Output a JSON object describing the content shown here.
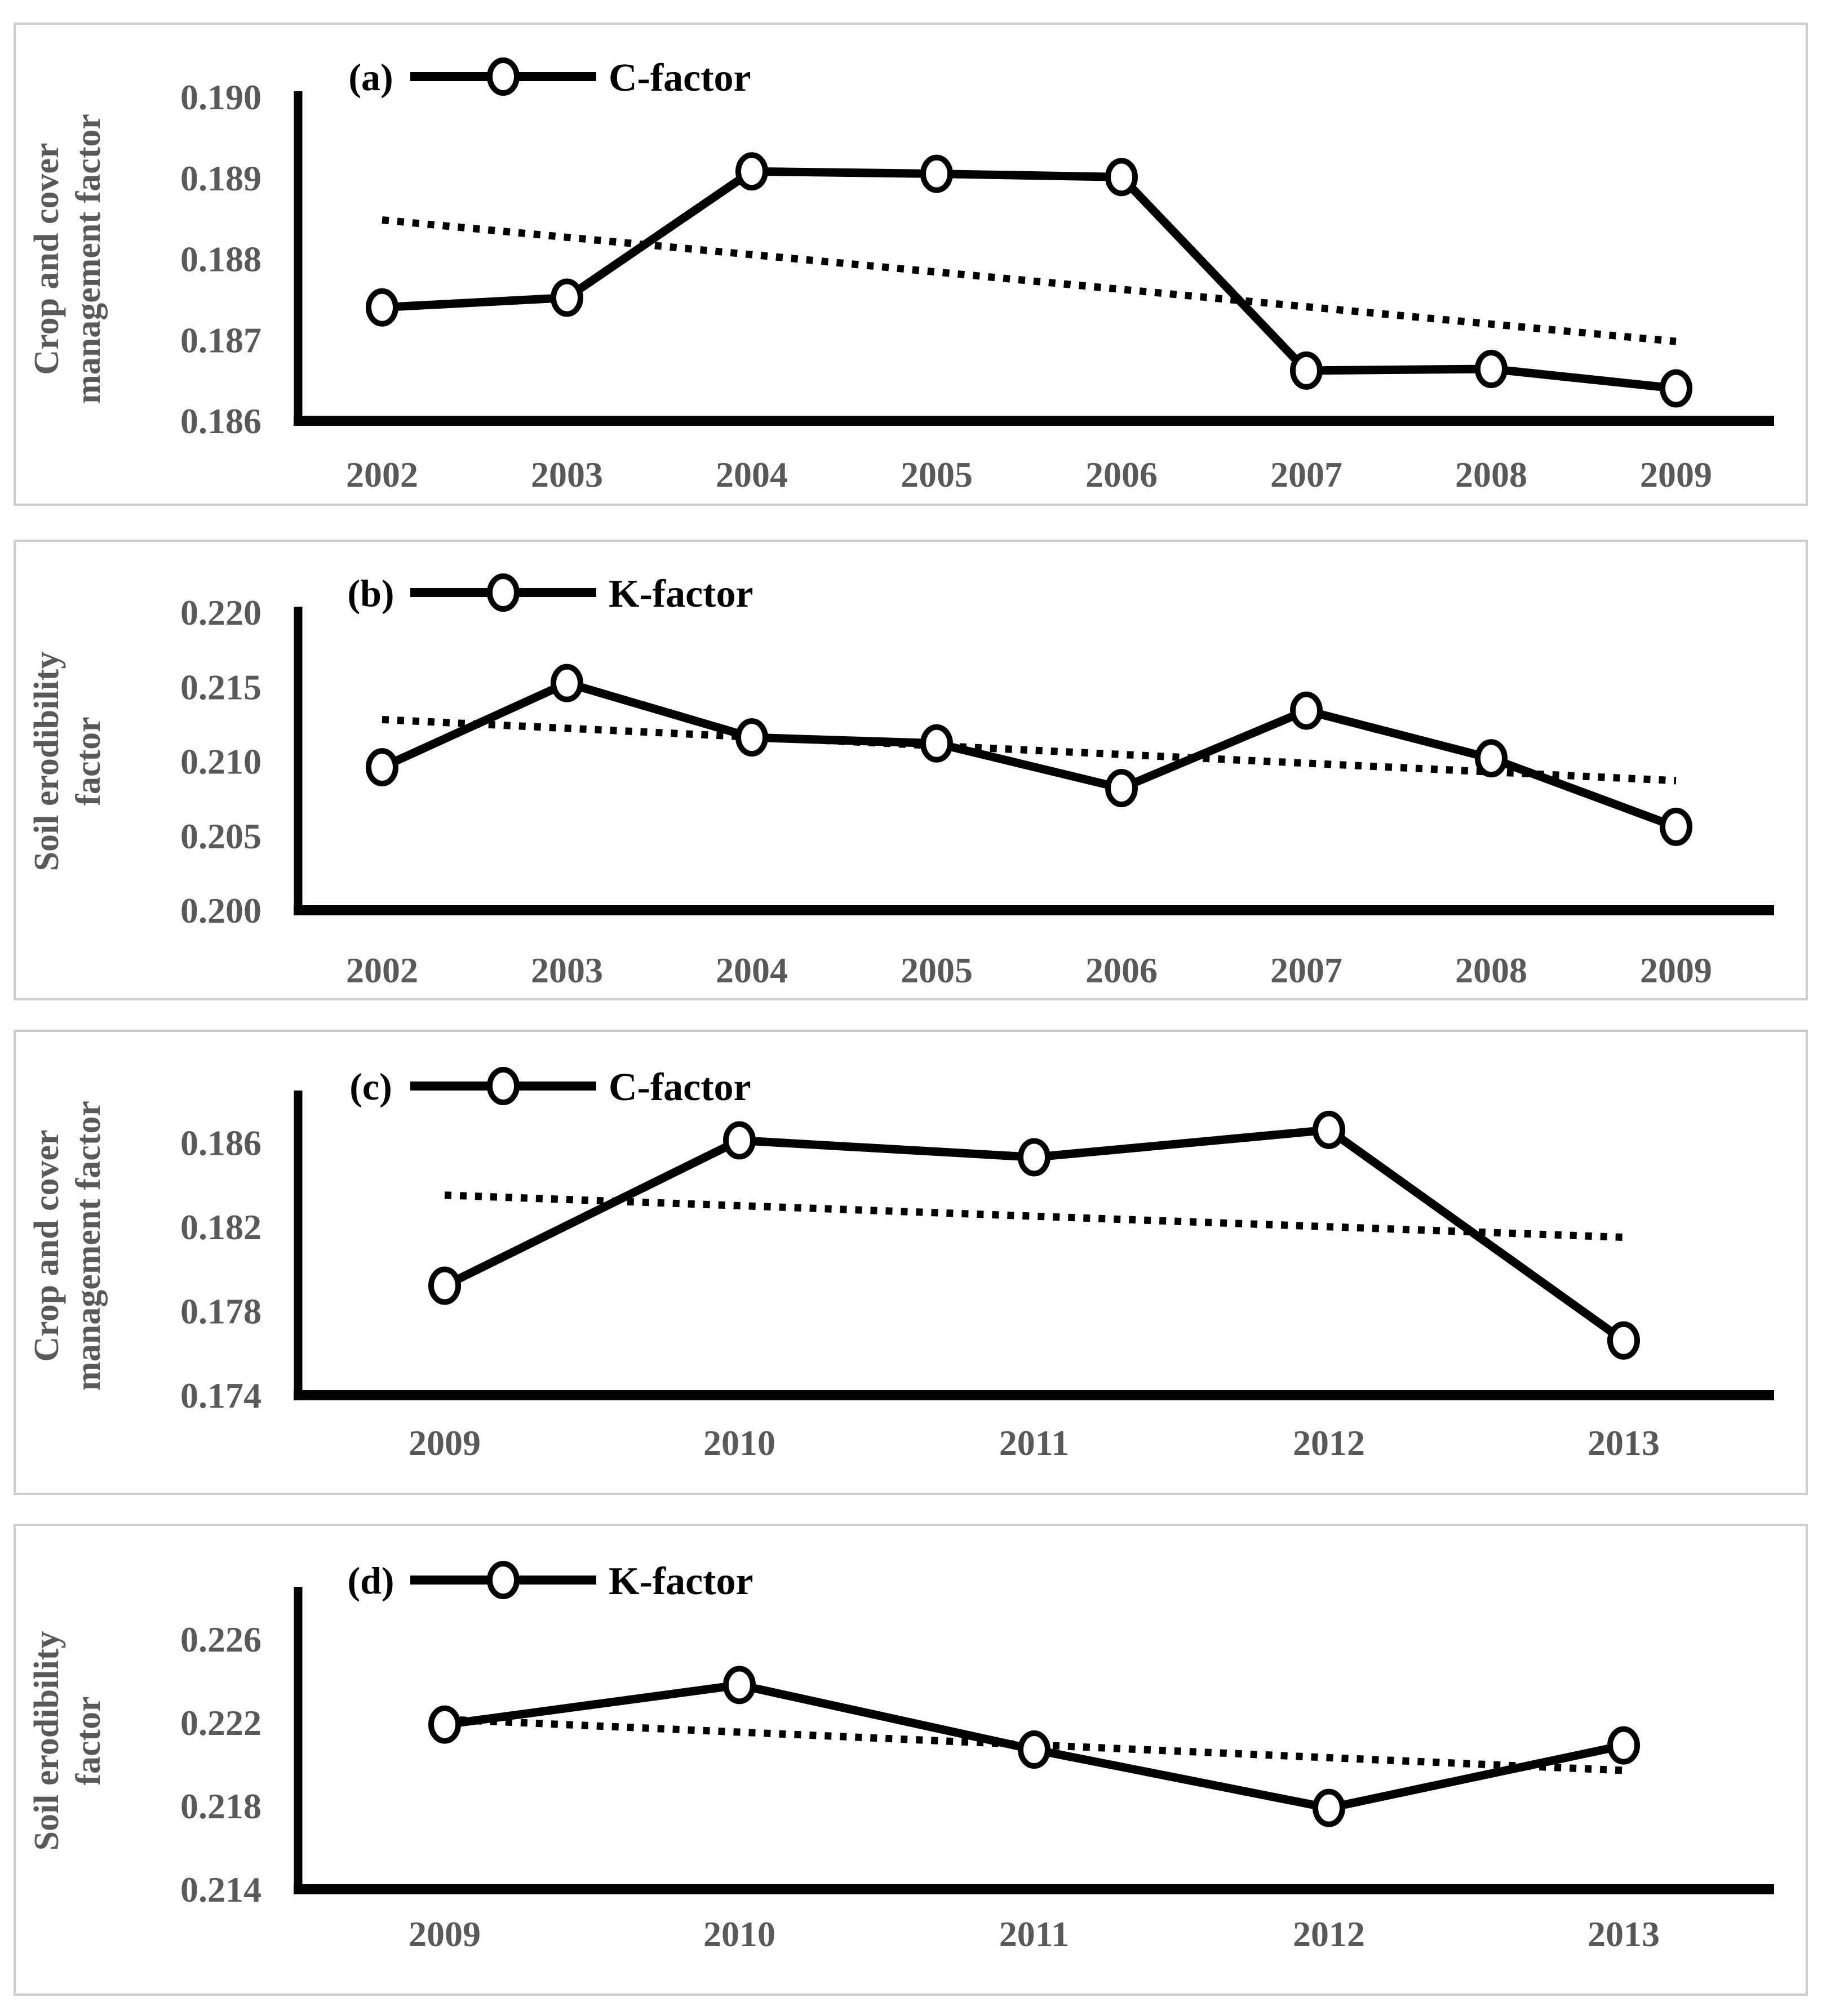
{
  "page": {
    "background": "#ffffff",
    "panel_border_color": "#cdcdcd",
    "axis_color": "#000000",
    "series_color": "#000000",
    "tick_label_color": "#595959",
    "marker_fill": "#ffffff"
  },
  "chart_data": [
    {
      "id": "a",
      "type": "line",
      "panel_label": "(a)",
      "legend": [
        "C-factor"
      ],
      "legend_position": "top-left-inside",
      "ylabel": "Crop and cover management factor",
      "ylabel_lines": [
        "Crop and cover",
        "management factor"
      ],
      "xlabel": "",
      "categories": [
        "2002",
        "2003",
        "2004",
        "2005",
        "2006",
        "2007",
        "2008",
        "2009"
      ],
      "series": [
        {
          "name": "C-factor",
          "style": "solid-line-open-circle-markers",
          "values": [
            0.1874,
            0.18752,
            0.18908,
            0.18905,
            0.18901,
            0.18662,
            0.18664,
            0.1864
          ]
        }
      ],
      "trendline": {
        "style": "dotted",
        "start": 0.18848,
        "end": 0.18698
      },
      "yticks": [
        {
          "label": "0.186",
          "value": 0.186
        },
        {
          "label": "0.187",
          "value": 0.187
        },
        {
          "label": "0.188",
          "value": 0.188
        },
        {
          "label": "0.189",
          "value": 0.189
        },
        {
          "label": "0.190",
          "value": 0.19
        }
      ],
      "ylim": [
        0.186,
        0.19
      ],
      "grid": false
    },
    {
      "id": "b",
      "type": "line",
      "panel_label": "(b)",
      "legend": [
        "K-factor"
      ],
      "legend_position": "top-left-inside",
      "ylabel": "Soil erodibility factor",
      "ylabel_lines": [
        "Soil erodibility",
        "factor"
      ],
      "xlabel": "",
      "categories": [
        "2002",
        "2003",
        "2004",
        "2005",
        "2006",
        "2007",
        "2008",
        "2009"
      ],
      "series": [
        {
          "name": "K-factor",
          "style": "solid-line-open-circle-markers",
          "values": [
            0.2096,
            0.21525,
            0.2116,
            0.2112,
            0.2082,
            0.2134,
            0.2102,
            0.2056
          ]
        }
      ],
      "trendline": {
        "style": "dotted",
        "start": 0.2128,
        "end": 0.2087
      },
      "yticks": [
        {
          "label": "0.200",
          "value": 0.2
        },
        {
          "label": "0.205",
          "value": 0.205
        },
        {
          "label": "0.210",
          "value": 0.21
        },
        {
          "label": "0.215",
          "value": 0.215
        },
        {
          "label": "0.220",
          "value": 0.22
        }
      ],
      "ylim": [
        0.2,
        0.22
      ],
      "grid": false
    },
    {
      "id": "c",
      "type": "line",
      "panel_label": "(c)",
      "legend": [
        "C-factor"
      ],
      "legend_position": "top-left-inside",
      "ylabel": "Crop and cover management factor",
      "ylabel_lines": [
        "Crop and cover",
        "management factor"
      ],
      "xlabel": "",
      "categories": [
        "2009",
        "2010",
        "2011",
        "2012",
        "2013"
      ],
      "series": [
        {
          "name": "C-factor",
          "style": "solid-line-open-circle-markers",
          "values": [
            0.1792,
            0.1861,
            0.1853,
            0.1866,
            0.1766
          ]
        }
      ],
      "trendline": {
        "style": "dotted",
        "start": 0.1835,
        "end": 0.1815
      },
      "yticks": [
        {
          "label": "0.174",
          "value": 0.174
        },
        {
          "label": "0.178",
          "value": 0.178
        },
        {
          "label": "0.182",
          "value": 0.182
        },
        {
          "label": "0.186",
          "value": 0.186
        }
      ],
      "ylim": [
        0.174,
        0.1882
      ],
      "grid": false
    },
    {
      "id": "d",
      "type": "line",
      "panel_label": "(d)",
      "legend": [
        "K-factor"
      ],
      "legend_position": "top-left-inside",
      "ylabel": "Soil erodibility factor",
      "ylabel_lines": [
        "Soil erodibility",
        "factor"
      ],
      "xlabel": "",
      "categories": [
        "2009",
        "2010",
        "2011",
        "2012",
        "2013"
      ],
      "series": [
        {
          "name": "K-factor",
          "style": "solid-line-open-circle-markers",
          "values": [
            0.2219,
            0.2238,
            0.2207,
            0.2179,
            0.2209
          ]
        }
      ],
      "trendline": {
        "style": "dotted",
        "start": 0.22215,
        "end": 0.2197
      },
      "yticks": [
        {
          "label": "0.214",
          "value": 0.214
        },
        {
          "label": "0.218",
          "value": 0.218
        },
        {
          "label": "0.222",
          "value": 0.222
        },
        {
          "label": "0.226",
          "value": 0.226
        }
      ],
      "ylim": [
        0.214,
        0.22824
      ],
      "grid": false
    }
  ]
}
